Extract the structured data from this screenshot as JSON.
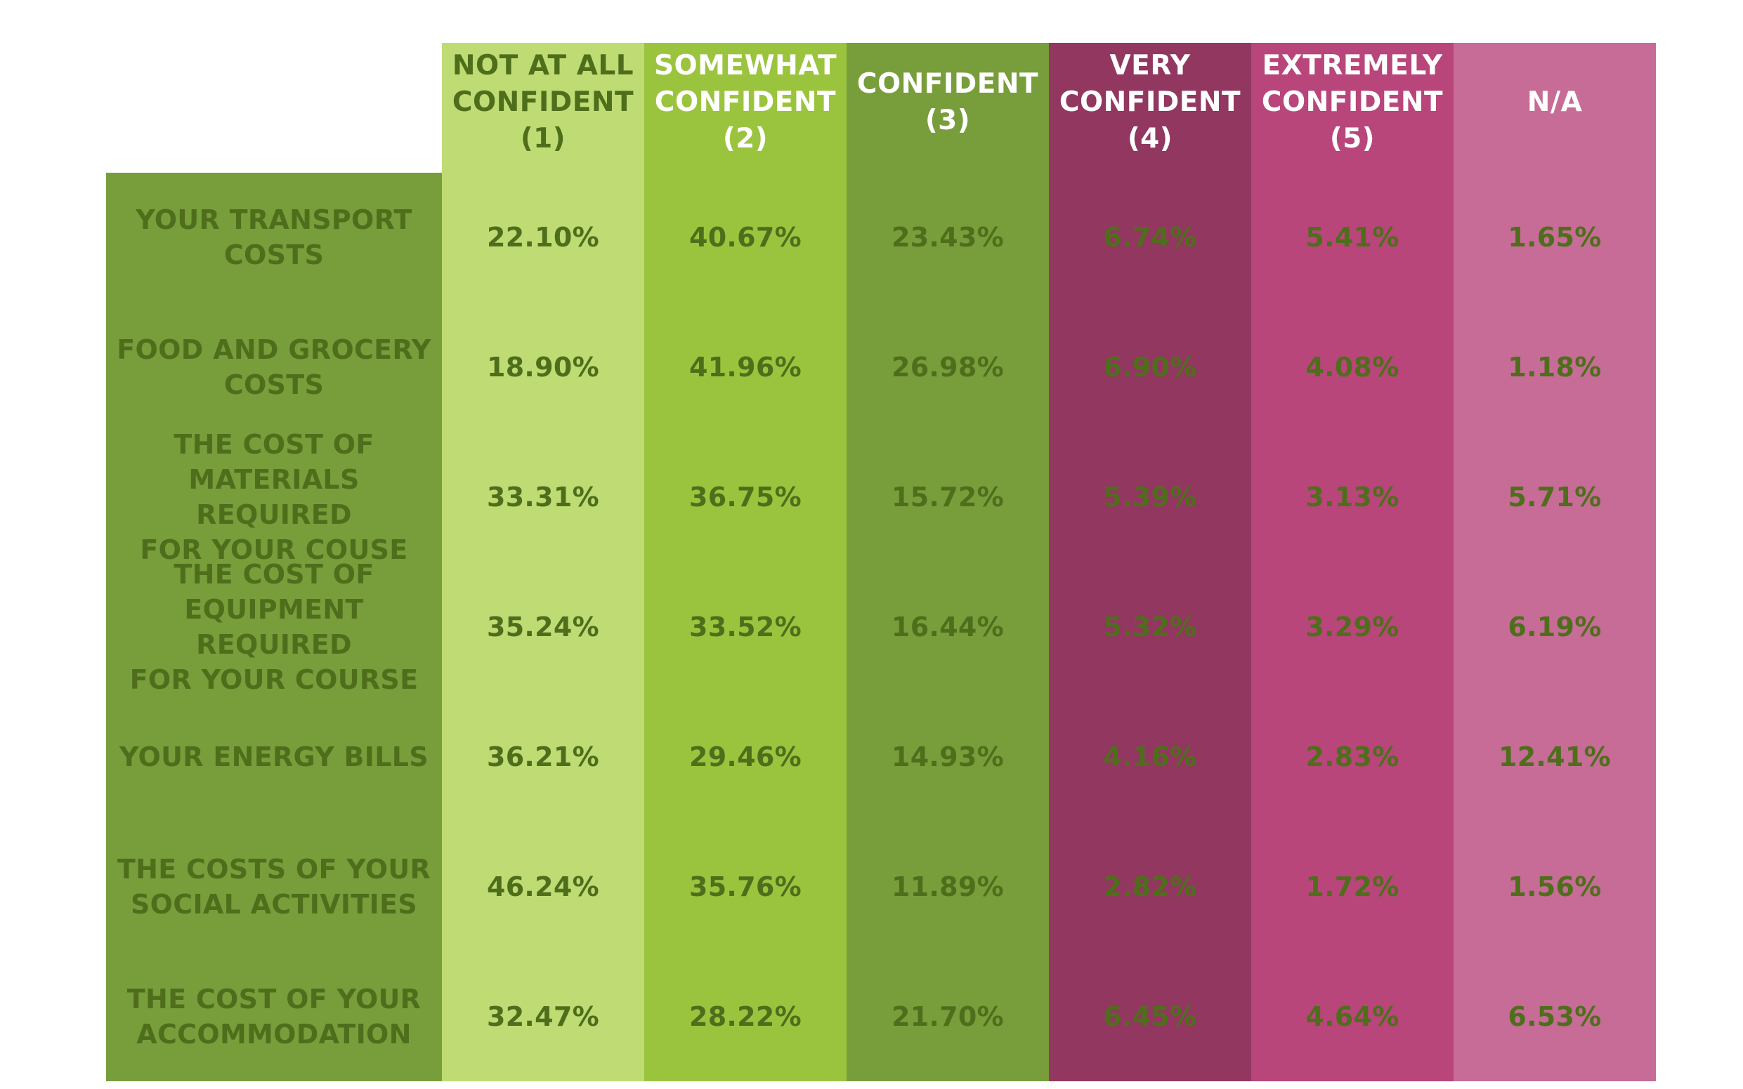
{
  "colors": {
    "label_column": "#789d3b",
    "columns": [
      "#bedc73",
      "#9bc43e",
      "#789d3b",
      "#913760",
      "#b8467a",
      "#c66c96"
    ],
    "header_text": [
      "#4f6e1c",
      "#ffffff",
      "#ffffff",
      "#ffffff",
      "#ffffff",
      "#ffffff"
    ],
    "value_text": "#4f6e1c",
    "background": "#ffffff"
  },
  "chart_data": {
    "type": "table",
    "title": "",
    "columns": [
      "NOT AT ALL\nCONFIDENT\n(1)",
      "SOMEWHAT\nCONFIDENT\n(2)",
      "CONFIDENT\n(3)",
      "VERY\nCONFIDENT\n(4)",
      "EXTREMELY\nCONFIDENT\n(5)",
      "N/A"
    ],
    "rows": [
      {
        "label": "YOUR TRANSPORT\nCOSTS",
        "values": [
          "22.10%",
          "40.67%",
          "23.43%",
          "6.74%",
          "5.41%",
          "1.65%"
        ]
      },
      {
        "label": "FOOD AND GROCERY\nCOSTS",
        "values": [
          "18.90%",
          "41.96%",
          "26.98%",
          "6.90%",
          "4.08%",
          "1.18%"
        ]
      },
      {
        "label": "THE COST OF\nMATERIALS REQUIRED\nFOR YOUR COUSE",
        "values": [
          "33.31%",
          "36.75%",
          "15.72%",
          "5.39%",
          "3.13%",
          "5.71%"
        ]
      },
      {
        "label": "THE COST OF\nEQUIPMENT REQUIRED\nFOR YOUR COURSE",
        "values": [
          "35.24%",
          "33.52%",
          "16.44%",
          "5.32%",
          "3.29%",
          "6.19%"
        ]
      },
      {
        "label": "YOUR ENERGY BILLS",
        "values": [
          "36.21%",
          "29.46%",
          "14.93%",
          "4.16%",
          "2.83%",
          "12.41%"
        ]
      },
      {
        "label": "THE COSTS OF YOUR\nSOCIAL ACTIVITIES",
        "values": [
          "46.24%",
          "35.76%",
          "11.89%",
          "2.82%",
          "1.72%",
          "1.56%"
        ]
      },
      {
        "label": "THE COST OF YOUR\nACCOMMODATION",
        "values": [
          "32.47%",
          "28.22%",
          "21.70%",
          "6.45%",
          "4.64%",
          "6.53%"
        ]
      }
    ]
  }
}
